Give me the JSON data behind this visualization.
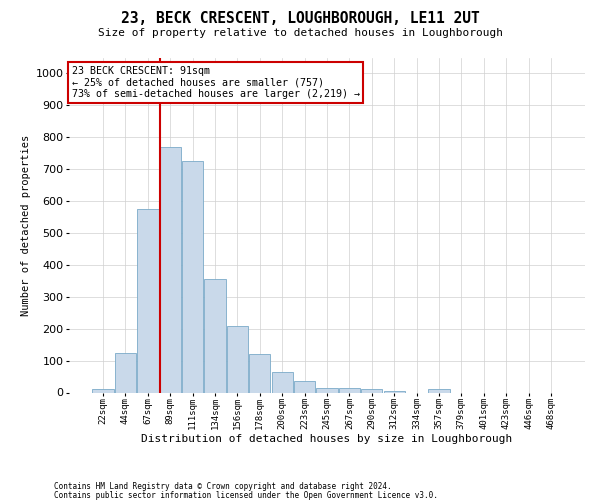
{
  "title": "23, BECK CRESCENT, LOUGHBOROUGH, LE11 2UT",
  "subtitle": "Size of property relative to detached houses in Loughborough",
  "xlabel": "Distribution of detached houses by size in Loughborough",
  "ylabel": "Number of detached properties",
  "bar_labels": [
    "22sqm",
    "44sqm",
    "67sqm",
    "89sqm",
    "111sqm",
    "134sqm",
    "156sqm",
    "178sqm",
    "200sqm",
    "223sqm",
    "245sqm",
    "267sqm",
    "290sqm",
    "312sqm",
    "334sqm",
    "357sqm",
    "379sqm",
    "401sqm",
    "423sqm",
    "446sqm",
    "468sqm"
  ],
  "bar_values": [
    10,
    125,
    575,
    770,
    725,
    355,
    210,
    120,
    65,
    35,
    15,
    15,
    10,
    5,
    0,
    10,
    0,
    0,
    0,
    0,
    0
  ],
  "bar_color": "#c9d9ea",
  "bar_edge_color": "#7aaac8",
  "ylim": [
    0,
    1050
  ],
  "yticks": [
    0,
    100,
    200,
    300,
    400,
    500,
    600,
    700,
    800,
    900,
    1000
  ],
  "property_line_color": "#cc0000",
  "annotation_line1": "23 BECK CRESCENT: 91sqm",
  "annotation_line2": "← 25% of detached houses are smaller (757)",
  "annotation_line3": "73% of semi-detached houses are larger (2,219) →",
  "footer_line1": "Contains HM Land Registry data © Crown copyright and database right 2024.",
  "footer_line2": "Contains public sector information licensed under the Open Government Licence v3.0.",
  "background_color": "#ffffff",
  "grid_color": "#d0d0d0"
}
